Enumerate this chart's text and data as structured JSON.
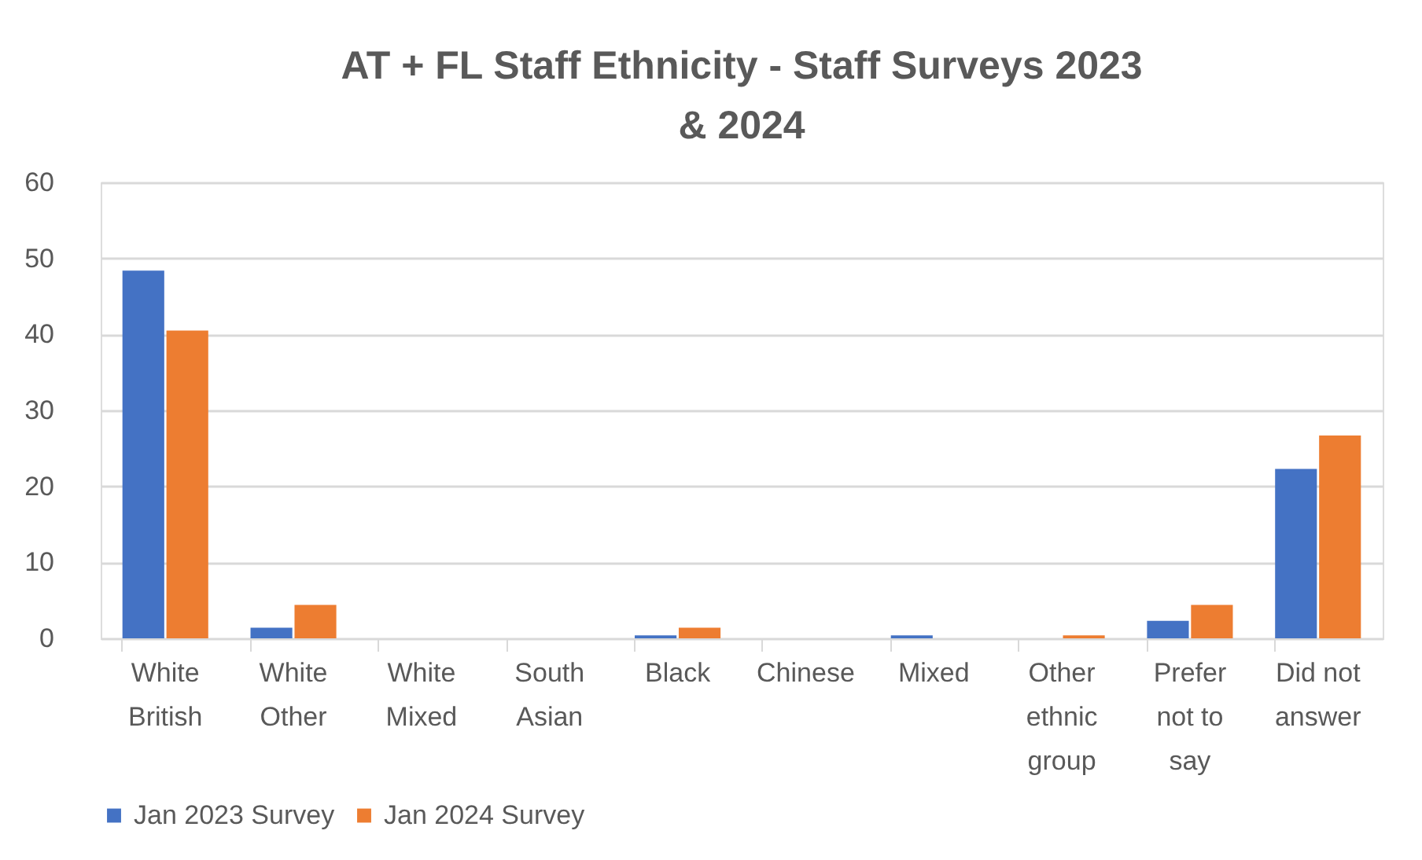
{
  "chart_data": {
    "type": "bar",
    "title": "AT + FL Staff Ethnicity - Staff Surveys 2023 & 2024",
    "categories": [
      "White British",
      "White Other",
      "White Mixed",
      "South Asian",
      "Black",
      "Chinese",
      "Mixed",
      "Other ethnic group",
      "Prefer not to say",
      "Did not answer"
    ],
    "series": [
      {
        "name": "Jan 2023 Survey",
        "color": "#4472c4",
        "values": [
          48.4,
          1.4,
          0,
          0,
          0.4,
          0,
          0.4,
          0,
          2.3,
          22.3
        ]
      },
      {
        "name": "Jan 2024 Survey",
        "color": "#ed7d31",
        "values": [
          40.5,
          4.4,
          0,
          0,
          1.4,
          0,
          0,
          0.4,
          4.4,
          26.7
        ]
      }
    ],
    "ylim": [
      0,
      60
    ],
    "yticks": [
      0,
      10,
      20,
      30,
      40,
      50,
      60
    ],
    "grid": "y",
    "legend": "bottom"
  }
}
